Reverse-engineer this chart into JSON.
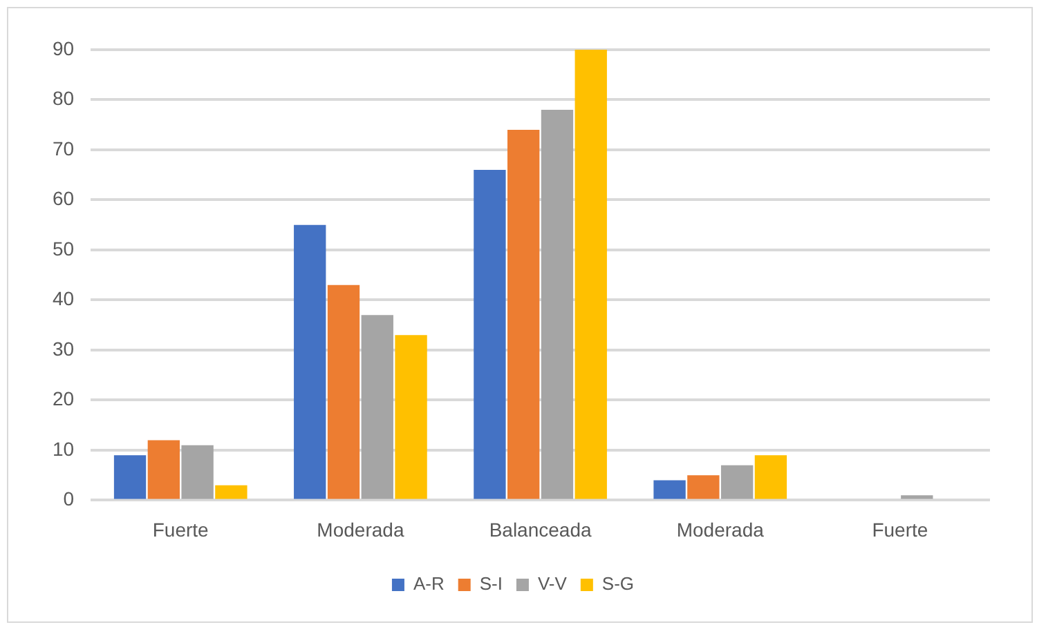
{
  "chart_data": {
    "type": "bar",
    "categories": [
      "Fuerte",
      "Moderada",
      "Balanceada",
      "Moderada",
      "Fuerte"
    ],
    "series": [
      {
        "name": "A-R",
        "color": "#4472c4",
        "values": [
          9,
          55,
          66,
          4,
          0
        ]
      },
      {
        "name": "S-I",
        "color": "#ed7d31",
        "values": [
          12,
          43,
          74,
          5,
          0
        ]
      },
      {
        "name": "V-V",
        "color": "#a5a5a5",
        "values": [
          11,
          37,
          78,
          7,
          1
        ]
      },
      {
        "name": "S-G",
        "color": "#ffc000",
        "values": [
          3,
          33,
          90,
          9,
          0
        ]
      }
    ],
    "ylim": [
      0,
      90
    ],
    "yticks": [
      0,
      10,
      20,
      30,
      40,
      50,
      60,
      70,
      80,
      90
    ],
    "grid": "y",
    "legend": "bottom"
  }
}
